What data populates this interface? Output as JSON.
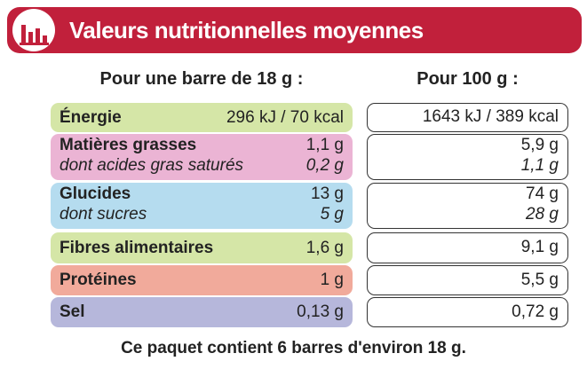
{
  "header": {
    "title": "Valeurs nutritionnelles moyennes"
  },
  "columns": [
    "Pour une barre de 18 g :",
    "Pour 100 g :"
  ],
  "rows": [
    {
      "label": "Énergie",
      "per_bar": "296 kJ / 70 kcal",
      "per_100g": "1643 kJ / 389 kcal"
    },
    {
      "label": "Matières grasses",
      "per_bar": "1,1 g",
      "per_100g": "5,9 g",
      "sub_label": "dont acides gras saturés",
      "sub_per_bar": "0,2 g",
      "sub_per_100g": "1,1 g"
    },
    {
      "label": "Glucides",
      "per_bar": "13 g",
      "per_100g": "74 g",
      "sub_label": "dont sucres",
      "sub_per_bar": "5 g",
      "sub_per_100g": "28 g"
    },
    {
      "label": "Fibres alimentaires",
      "per_bar": "1,6 g",
      "per_100g": "9,1 g"
    },
    {
      "label": "Protéines",
      "per_bar": "1 g",
      "per_100g": "5,5 g"
    },
    {
      "label": "Sel",
      "per_bar": "0,13 g",
      "per_100g": "0,72 g"
    }
  ],
  "footer": "Ce paquet contient 6 barres d'environ 18 g."
}
